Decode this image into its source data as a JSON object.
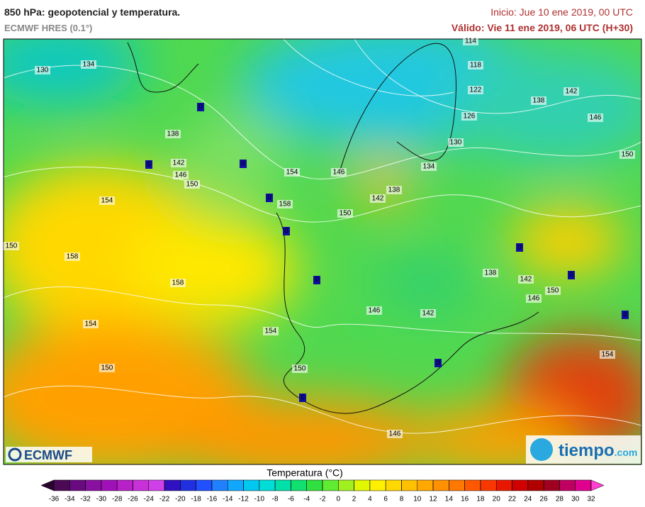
{
  "header": {
    "title": "850 hPa: geopotencial y temperatura.",
    "model": "ECMWF HRES (0.1°)",
    "init": "Inicio: Jue 10 ene 2019, 00 UTC",
    "valid": "Válido: Vie 11 ene 2019, 06 UTC (H+30)"
  },
  "map": {
    "contour_labels": [
      "130",
      "134",
      "138",
      "142",
      "146",
      "150",
      "154",
      "150",
      "158",
      "158",
      "154",
      "150",
      "154",
      "158",
      "146",
      "150",
      "142",
      "138",
      "134",
      "130",
      "126",
      "122",
      "118",
      "114",
      "138",
      "142",
      "146",
      "150",
      "138",
      "142",
      "150",
      "146",
      "142",
      "146",
      "154",
      "150",
      "146",
      "154"
    ],
    "zero_markers": [
      "0",
      "0",
      "0",
      "0",
      "0",
      "0",
      "0",
      "0",
      "0",
      "0",
      "0"
    ]
  },
  "colorbar": {
    "title": "Temperatura (°C)",
    "ticks": [
      -36,
      -34,
      -32,
      -30,
      -28,
      -26,
      -24,
      -22,
      -20,
      -18,
      -16,
      -14,
      -12,
      -10,
      -8,
      -6,
      -4,
      -2,
      0,
      2,
      4,
      6,
      8,
      10,
      12,
      14,
      16,
      18,
      20,
      22,
      24,
      26,
      28,
      30,
      32
    ],
    "colors": [
      "#2a0530",
      "#4a0a55",
      "#6a0a80",
      "#8a10a0",
      "#a010b8",
      "#b820c8",
      "#c830d8",
      "#d040e8",
      "#3010c0",
      "#2030e0",
      "#2050ff",
      "#2080ff",
      "#10a8ff",
      "#00c8f0",
      "#00dcd8",
      "#00e0a8",
      "#10e070",
      "#30e040",
      "#60ec30",
      "#a0f020",
      "#e0f800",
      "#fff000",
      "#ffd800",
      "#ffc000",
      "#ffa800",
      "#ff9000",
      "#ff7800",
      "#ff5800",
      "#f83800",
      "#e81800",
      "#d00000",
      "#b00000",
      "#a00020",
      "#c00060",
      "#e00090",
      "#ff40d0"
    ]
  },
  "logos": {
    "left": "ECMWF",
    "right": "tiempo",
    "right_suffix": ".com"
  }
}
